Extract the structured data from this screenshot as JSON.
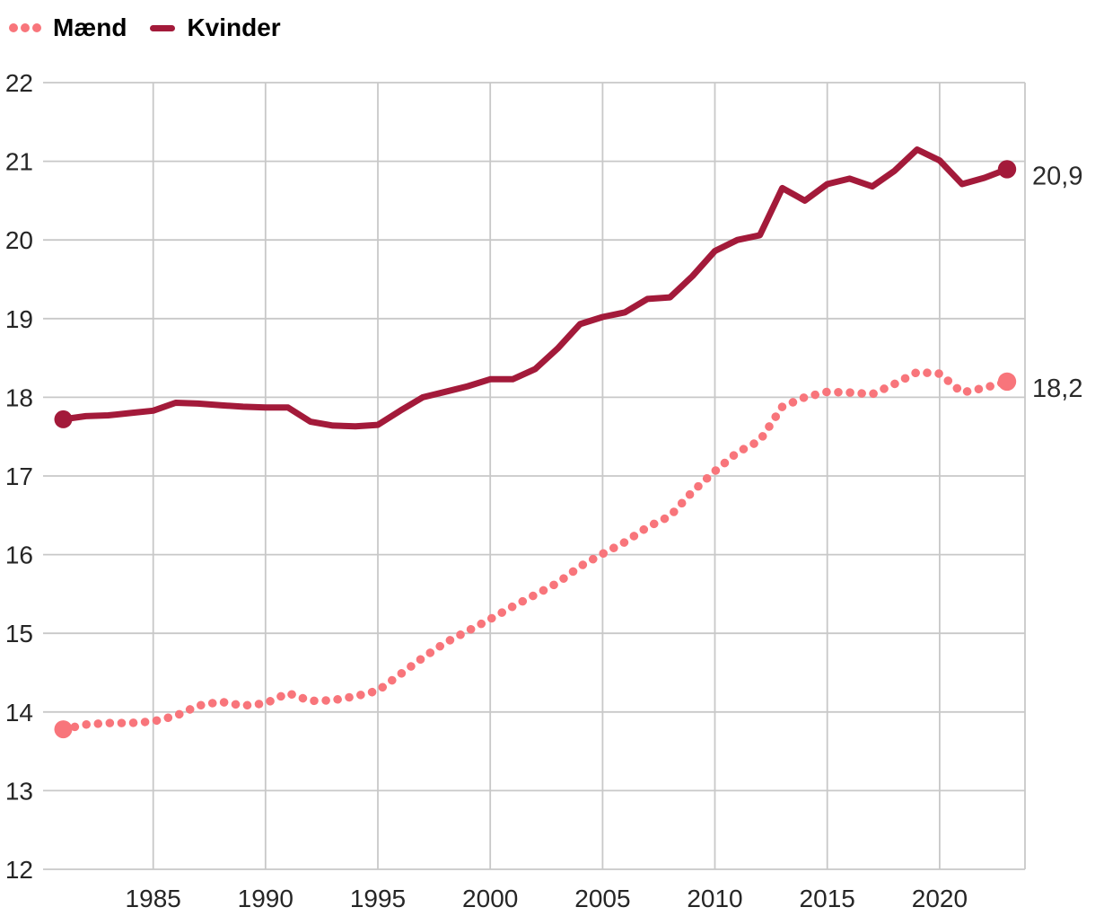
{
  "chart_data": {
    "type": "line",
    "x": [
      1981,
      1982,
      1983,
      1984,
      1985,
      1986,
      1987,
      1988,
      1989,
      1990,
      1991,
      1992,
      1993,
      1994,
      1995,
      1996,
      1997,
      1998,
      1999,
      2000,
      2001,
      2002,
      2003,
      2004,
      2005,
      2006,
      2007,
      2008,
      2009,
      2010,
      2011,
      2012,
      2013,
      2014,
      2015,
      2016,
      2017,
      2018,
      2019,
      2020,
      2021,
      2022,
      2023
    ],
    "series": [
      {
        "name": "Mænd",
        "color": "#F8757B",
        "line_style": "dotted",
        "end_label": "18,2",
        "values": [
          13.78,
          13.84,
          13.86,
          13.86,
          13.88,
          13.95,
          14.08,
          14.13,
          14.08,
          14.11,
          14.24,
          14.14,
          14.15,
          14.2,
          14.27,
          14.48,
          14.69,
          14.88,
          15.03,
          15.18,
          15.34,
          15.49,
          15.64,
          15.85,
          16.01,
          16.16,
          16.35,
          16.49,
          16.8,
          17.06,
          17.3,
          17.45,
          17.88,
          18.0,
          18.07,
          18.06,
          18.04,
          18.17,
          18.32,
          18.3,
          18.06,
          18.12,
          18.2
        ]
      },
      {
        "name": "Kvinder",
        "color": "#A31A3A",
        "line_style": "solid",
        "end_label": "20,9",
        "values": [
          17.72,
          17.76,
          17.77,
          17.8,
          17.83,
          17.93,
          17.92,
          17.9,
          17.88,
          17.87,
          17.87,
          17.69,
          17.64,
          17.63,
          17.65,
          17.83,
          18.0,
          18.07,
          18.14,
          18.23,
          18.23,
          18.36,
          18.62,
          18.93,
          19.02,
          19.08,
          19.25,
          19.27,
          19.54,
          19.86,
          20.0,
          20.06,
          20.66,
          20.5,
          20.71,
          20.78,
          20.68,
          20.88,
          21.15,
          21.01,
          20.71,
          20.79,
          20.9
        ]
      }
    ],
    "title": "",
    "xlabel": "",
    "ylabel": "",
    "xlim": [
      1980.1,
      2023.8
    ],
    "ylim": [
      12,
      22
    ],
    "yticks": [
      22,
      21,
      20,
      19,
      18,
      17,
      16,
      15,
      14,
      13,
      12
    ],
    "xticks": [
      1985,
      1990,
      1995,
      2000,
      2005,
      2010,
      2015,
      2020
    ],
    "grid": true,
    "legend_position": "top-left",
    "grid_color": "#C8C8C8",
    "tick_label_color": "#262626",
    "annotation_color": "#2B2B2B"
  }
}
